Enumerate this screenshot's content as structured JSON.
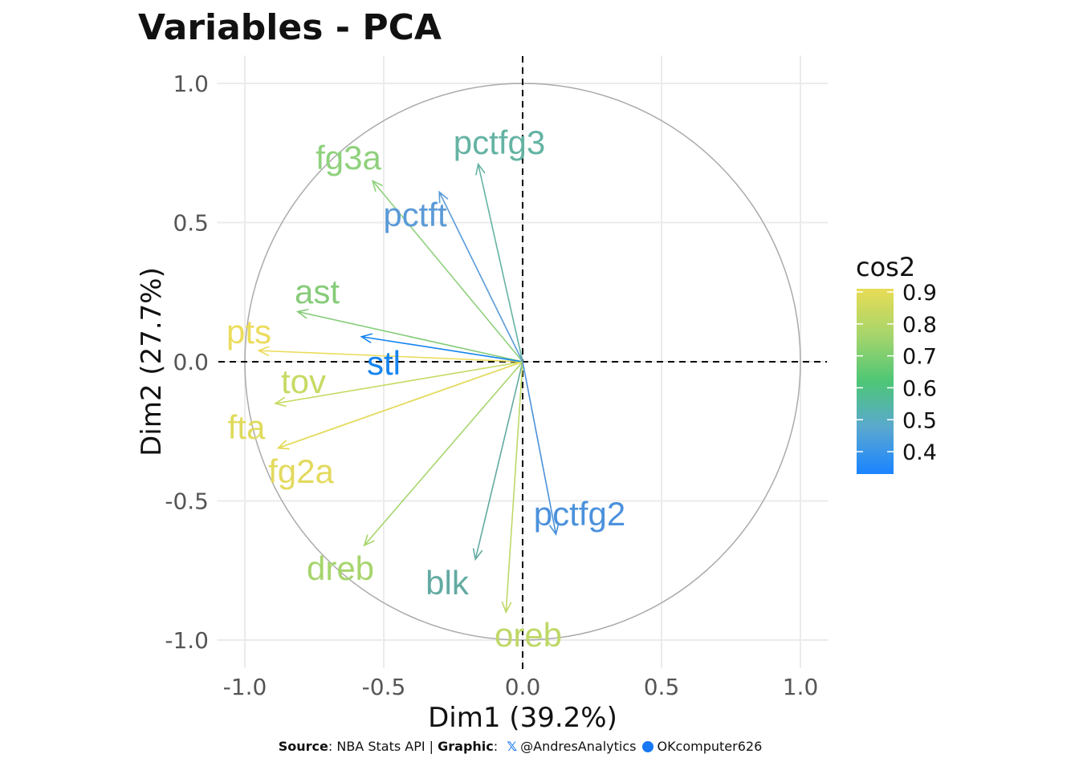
{
  "chart_data": {
    "type": "scatter",
    "subtype": "pca-variable-correlation-circle",
    "title": "Variables - PCA",
    "xlabel": "Dim1 (39.2%)",
    "ylabel": "Dim2 (27.7%)",
    "xlim": [
      -1.1,
      1.1
    ],
    "ylim": [
      -1.1,
      1.1
    ],
    "x_ticks": [
      -1.0,
      -0.5,
      0.0,
      0.5,
      1.0
    ],
    "y_ticks": [
      -1.0,
      -0.5,
      0.0,
      0.5,
      1.0
    ],
    "x_tick_labels": [
      "-1.0",
      "-0.5",
      "0.0",
      "0.5",
      "1.0"
    ],
    "y_tick_labels": [
      "-1.0",
      "-0.5",
      "0.0",
      "0.5",
      "1.0"
    ],
    "grid": true,
    "unit_circle": true,
    "reference_lines": "dashed x=0 and y=0",
    "color_variable": "cos2",
    "points": [
      {
        "label": "pctfg3",
        "x": -0.16,
        "y": 0.71,
        "cos2": 0.53,
        "color": "#64b3a3"
      },
      {
        "label": "fg3a",
        "x": -0.54,
        "y": 0.65,
        "cos2": 0.71,
        "color": "#8fd17d"
      },
      {
        "label": "pctft",
        "x": -0.3,
        "y": 0.61,
        "cos2": 0.46,
        "color": "#5a9ad7"
      },
      {
        "label": "ast",
        "x": -0.81,
        "y": 0.18,
        "cos2": 0.69,
        "color": "#86cc79"
      },
      {
        "label": "pts",
        "x": -0.95,
        "y": 0.04,
        "cos2": 0.9,
        "color": "#ecdc5c"
      },
      {
        "label": "stl",
        "x": -0.58,
        "y": 0.09,
        "cos2": 0.34,
        "color": "#1483ef"
      },
      {
        "label": "tov",
        "x": -0.89,
        "y": -0.15,
        "cos2": 0.81,
        "color": "#c6da63"
      },
      {
        "label": "fta",
        "x": -0.88,
        "y": -0.31,
        "cos2": 0.87,
        "color": "#dfdb5d"
      },
      {
        "label": "fg2a",
        "x": -0.88,
        "y": -0.31,
        "cos2": 0.87,
        "color": "#e3da5d"
      },
      {
        "label": "dreb",
        "x": -0.57,
        "y": -0.66,
        "cos2": 0.76,
        "color": "#a6d56c"
      },
      {
        "label": "blk",
        "x": -0.17,
        "y": -0.71,
        "cos2": 0.53,
        "color": "#62aaa2"
      },
      {
        "label": "oreb",
        "x": -0.06,
        "y": -0.9,
        "cos2": 0.82,
        "color": "#bed867"
      },
      {
        "label": "pctfg2",
        "x": 0.12,
        "y": -0.62,
        "cos2": 0.4,
        "color": "#4b91dc"
      }
    ],
    "legend": {
      "title": "cos2",
      "placement": "right",
      "ticks": [
        "0.9",
        "0.8",
        "0.7",
        "0.6",
        "0.5",
        "0.4"
      ],
      "tick_values": [
        0.9,
        0.8,
        0.7,
        0.6,
        0.5,
        0.4
      ],
      "range": [
        0.33,
        0.91
      ],
      "colors": [
        "#1a84ff",
        "#5aa8d0",
        "#4dc676",
        "#a6d56c",
        "#e8dc55"
      ]
    }
  },
  "caption": {
    "source_label": "Source",
    "source_text": ": NBA Stats API | ",
    "graphic_label": "Graphic",
    "graphic_sep": ": ",
    "x_icon": "x-logo-icon",
    "x_handle": "@AndresAnalytics",
    "github_icon": "github-icon",
    "github_handle": "OKcomputer626"
  }
}
